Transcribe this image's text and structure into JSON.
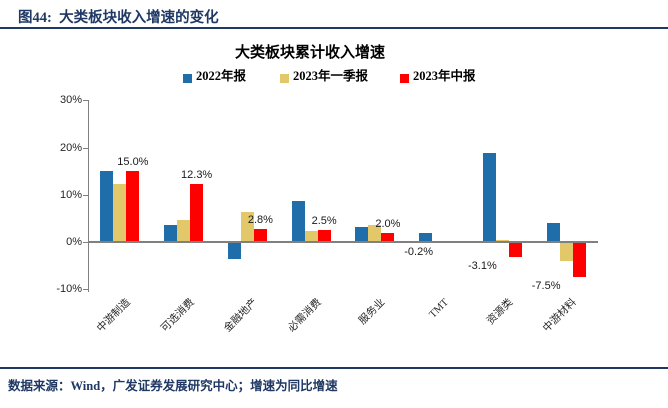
{
  "figure_title": "图44:  大类板块收入增速的变化",
  "footer_note": "数据来源：Wind，广发证券发展研究中心；增速为同比增速",
  "colors": {
    "navy": "#1F3864",
    "axis_gray": "#808080",
    "series_2022_annual": "#1F6DA9",
    "series_2023_q1": "#E2C869",
    "series_2023_interim": "#FF0000"
  },
  "chart_data": {
    "type": "bar",
    "title": "大类板块累计收入增速",
    "categories": [
      "中游制造",
      "可选消费",
      "金融地产",
      "必需消费",
      "服务业",
      "TMT",
      "资源类",
      "中游材料"
    ],
    "series": [
      {
        "name": "2022年报",
        "key": "2022-annual",
        "color": "#1F6DA9",
        "values": [
          15.0,
          3.5,
          -3.7,
          8.7,
          3.2,
          2.0,
          18.9,
          4.0
        ]
      },
      {
        "name": "2023年一季报",
        "key": "2023-q1",
        "color": "#E2C869",
        "values": [
          12.3,
          4.7,
          6.4,
          2.3,
          3.6,
          -0.3,
          0.4,
          -4.0
        ]
      },
      {
        "name": "2023年中报",
        "key": "2023-interim",
        "color": "#FF0000",
        "values": [
          15.0,
          12.3,
          2.8,
          2.5,
          2.0,
          -0.2,
          -3.1,
          -7.5
        ],
        "data_labels": [
          "15.0%",
          "12.3%",
          "2.8%",
          "2.5%",
          "2.0%",
          "-0.2%",
          "-3.1%",
          "-7.5%"
        ]
      }
    ],
    "labeled_series": "2023年中报",
    "ylim": [
      -10,
      30
    ],
    "yticks": [
      {
        "value": 30,
        "label": "30%"
      },
      {
        "value": 20,
        "label": "20%"
      },
      {
        "value": 10,
        "label": "10%"
      },
      {
        "value": 0,
        "label": "0%"
      },
      {
        "value": -10,
        "label": "-10%"
      }
    ],
    "legend_position": "top",
    "grid": false
  }
}
